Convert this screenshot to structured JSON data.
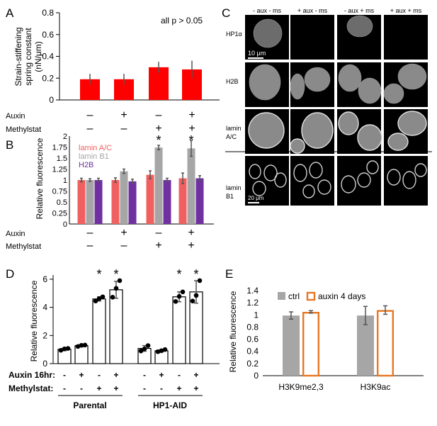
{
  "colors": {
    "red": "#ff0000",
    "salmon": "#f06060",
    "gray": "#a6a6a6",
    "purple": "#7030a0",
    "orange": "#e87722",
    "err": "#555555"
  },
  "panel_labels": [
    "A",
    "B",
    "C",
    "D",
    "E"
  ],
  "chart_data": [
    {
      "id": "A",
      "type": "bar",
      "ylabel": "Strain-stiffening spring constant (nN/µm)",
      "ylabel_lines": [
        "Strain-stiffening",
        "spring constant",
        "(nN/μm)"
      ],
      "yticks": [
        "0",
        "0.2",
        "0.4",
        "0.6",
        "0.8"
      ],
      "ylim": [
        0,
        0.8
      ],
      "annotation": "all p > 0.05",
      "values": [
        0.19,
        0.19,
        0.3,
        0.28
      ],
      "errors": [
        0.05,
        0.05,
        0.05,
        0.08
      ],
      "color": "#ff0000",
      "rows": [
        {
          "label": "Auxin",
          "signs": [
            "–",
            "+",
            "–",
            "+"
          ]
        },
        {
          "label": "Methylstat",
          "signs": [
            "–",
            "–",
            "+",
            "+"
          ]
        }
      ]
    },
    {
      "id": "B",
      "type": "bar",
      "ylabel": "Relative fluorescence",
      "yticks": [
        "0",
        "0.25",
        "0.5",
        "0.75",
        "1",
        "1.25",
        "1.5",
        "1.75",
        "2"
      ],
      "ylim": [
        0,
        2
      ],
      "series": [
        {
          "name": "lamin A/C",
          "color": "#f06060",
          "values": [
            1.0,
            1.0,
            1.12,
            1.04
          ],
          "errors": [
            0.04,
            0.05,
            0.09,
            0.12
          ]
        },
        {
          "name": "lamin B1",
          "color": "#a6a6a6",
          "values": [
            1.0,
            1.2,
            1.74,
            1.72
          ],
          "errors": [
            0.03,
            0.05,
            0.05,
            0.18
          ]
        },
        {
          "name": "H2B",
          "color": "#7030a0",
          "values": [
            1.0,
            0.97,
            1.0,
            1.04
          ],
          "errors": [
            0.04,
            0.05,
            0.04,
            0.06
          ]
        }
      ],
      "stars": [
        "",
        "",
        "*",
        "*"
      ],
      "rows": [
        {
          "label": "Auxin",
          "signs": [
            "–",
            "+",
            "–",
            "+"
          ]
        },
        {
          "label": "Methylstat",
          "signs": [
            "–",
            "–",
            "+",
            "+"
          ]
        }
      ]
    },
    {
      "id": "D",
      "type": "bar",
      "ylabel": "Relative fluorescence",
      "yticks": [
        "0",
        "2",
        "4",
        "6"
      ],
      "ylim": [
        0,
        6.3
      ],
      "values": [
        1.02,
        1.28,
        4.6,
        5.25,
        1.08,
        0.92,
        4.75,
        5.1
      ],
      "errors": [
        0.1,
        0.08,
        0.15,
        0.6,
        0.2,
        0.08,
        0.35,
        0.8
      ],
      "points": [
        [
          0.95,
          1.05,
          1.08
        ],
        [
          1.22,
          1.3,
          1.32
        ],
        [
          4.45,
          4.62,
          4.75
        ],
        [
          4.72,
          5.35,
          5.9
        ],
        [
          0.9,
          1.05,
          1.28
        ],
        [
          0.85,
          0.92,
          1.0
        ],
        [
          4.42,
          4.78,
          5.1
        ],
        [
          4.45,
          4.85,
          5.9
        ]
      ],
      "stars": [
        "",
        "",
        "*",
        "*",
        "",
        "",
        "*",
        "*"
      ],
      "rows": [
        {
          "label": "Auxin 16hr:",
          "signs": [
            "-",
            "+",
            "-",
            "+",
            "-",
            "+",
            "-",
            "+"
          ]
        },
        {
          "label": "Methylstat:",
          "signs": [
            "-",
            "-",
            "+",
            "+",
            "-",
            "-",
            "+",
            "+"
          ]
        }
      ],
      "groups": [
        "Parental",
        "HP1-AID"
      ]
    },
    {
      "id": "E",
      "type": "bar",
      "ylabel": "Relative fluorescence",
      "yticks": [
        "0",
        "0.2",
        "0.4",
        "0.6",
        "0.8",
        "1",
        "1.2",
        "1.4"
      ],
      "ylim": [
        0,
        1.4
      ],
      "categories": [
        "H3K9me2,3",
        "H3K9ac"
      ],
      "series": [
        {
          "name": "ctrl",
          "color": "#a6a6a6",
          "values": [
            0.99,
            0.99
          ],
          "errors": [
            0.06,
            0.15
          ]
        },
        {
          "name": "auxin 4 days",
          "color": "#e87722",
          "values": [
            1.05,
            1.08
          ],
          "errors": [
            0.02,
            0.07
          ]
        }
      ]
    }
  ],
  "microscopy": {
    "columns": [
      "- aux - ms",
      "+ aux - ms",
      "- aux + ms",
      "+ aux + ms"
    ],
    "rows": [
      "HP1α",
      "H2B",
      "lamin A/C",
      "lamin B1"
    ],
    "rows_display": [
      [
        "HP1α"
      ],
      [
        "H2B"
      ],
      [
        "lamin",
        "A/C"
      ],
      [
        "lamin",
        "B1"
      ]
    ],
    "scalebar_top": "10 μm",
    "scalebar_bottom": "20 μm"
  }
}
